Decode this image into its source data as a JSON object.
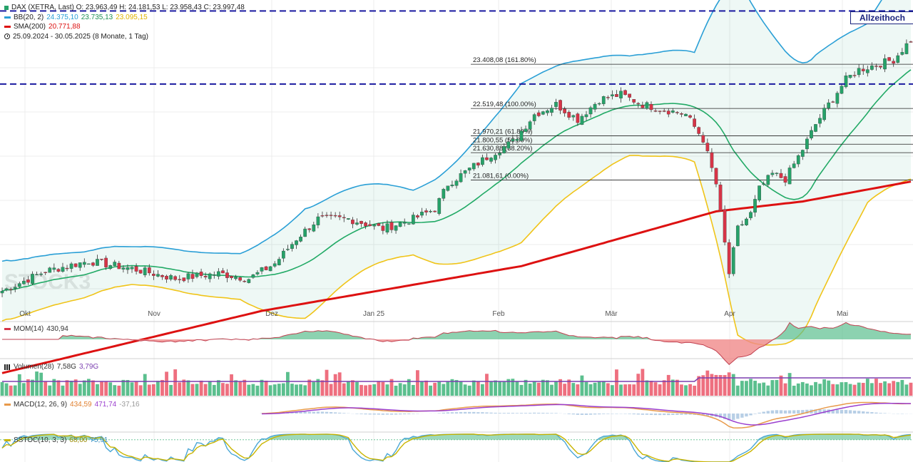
{
  "legend": {
    "dax": "DAX (XETRA, Last)  O: 23.963,49  H: 24.181,53  L: 23.958,43  C: 23.997,48",
    "bb_label": "BB(20, 2)",
    "bb_upper": "24.375,10",
    "bb_mid": "23.735,13",
    "bb_lower": "23.095,15",
    "sma_label": "SMA(200)",
    "sma_value": "20.771,88",
    "range": "25.09.2024 - 30.05.2025  (8 Monate, 1 Tag)"
  },
  "allzeit_button": "Allzeithoch",
  "watermark": "STOCK3",
  "indicators": {
    "mom": {
      "label": "MOM(14)",
      "value": "430,94"
    },
    "vol": {
      "label": "Volumen(28)",
      "value1": "7,58G",
      "value2": "3,79G"
    },
    "macd": {
      "label": "MACD(12, 26, 9)",
      "v1": "434,59",
      "v2": "471,74",
      "v3": "-37,16"
    },
    "sstoc": {
      "label": "SSTOC(10, 3, 3)",
      "v1": "68,00",
      "v2": "75,91"
    }
  },
  "colors": {
    "up": "#26a269",
    "down": "#d63447",
    "bb_upper": "#2a9fd6",
    "bb_mid": "#22aa66",
    "bb_lower": "#f0c419",
    "sma": "#dd1111",
    "allzeit_line": "#1a1aa0",
    "mom_fill_up": "#5bbf8e",
    "mom_fill_down": "#f08a8a",
    "macd_line": "#9b3fcf",
    "macd_signal": "#e89a4a",
    "stoc_k": "#4aa7d6",
    "stoc_d": "#c9b400"
  },
  "chart_data": {
    "type": "line",
    "x_ticks": [
      "Okt",
      "Nov",
      "Dez",
      "Jan 25",
      "Feb",
      "Mär",
      "Apr",
      "Mai"
    ],
    "y_range": [
      18250,
      24700
    ],
    "allzeit_levels": [
      24480,
      23010
    ],
    "fibonacci": [
      {
        "label": "23.408,08 (161.80%)",
        "value": 23408.08
      },
      {
        "label": "22.519,48 (100.00%)",
        "value": 22519.48
      },
      {
        "label": "21.970,21 (61.80%)",
        "value": 21970.21
      },
      {
        "label": "21.800,55 (50.00%)",
        "value": 21800.55
      },
      {
        "label": "21.630,88 (38.20%)",
        "value": 21630.88
      },
      {
        "label": "21.081,61 (0.00%)",
        "value": 21081.61
      }
    ],
    "close_anchors": [
      [
        0,
        18850
      ],
      [
        10,
        19250
      ],
      [
        20,
        19450
      ],
      [
        30,
        19300
      ],
      [
        40,
        19100
      ],
      [
        50,
        19200
      ],
      [
        57,
        19100
      ],
      [
        63,
        19400
      ],
      [
        68,
        19900
      ],
      [
        73,
        20300
      ],
      [
        80,
        20300
      ],
      [
        88,
        20100
      ],
      [
        95,
        20300
      ],
      [
        100,
        20500
      ],
      [
        103,
        21000
      ],
      [
        108,
        21300
      ],
      [
        113,
        21600
      ],
      [
        118,
        21850
      ],
      [
        123,
        22400
      ],
      [
        128,
        22600
      ],
      [
        133,
        22300
      ],
      [
        138,
        22700
      ],
      [
        143,
        22800
      ],
      [
        148,
        22600
      ],
      [
        153,
        22500
      ],
      [
        158,
        22400
      ],
      [
        162,
        21900
      ],
      [
        165,
        21000
      ],
      [
        168,
        19200
      ],
      [
        170,
        20100
      ],
      [
        173,
        20400
      ],
      [
        175,
        20900
      ],
      [
        178,
        21200
      ],
      [
        181,
        21100
      ],
      [
        185,
        21700
      ],
      [
        188,
        22200
      ],
      [
        191,
        22600
      ],
      [
        195,
        23100
      ],
      [
        198,
        23300
      ],
      [
        202,
        23400
      ],
      [
        206,
        23500
      ],
      [
        210,
        23900
      ]
    ],
    "sma200_anchors": [
      [
        0,
        17200
      ],
      [
        60,
        18450
      ],
      [
        120,
        19350
      ],
      [
        165,
        20450
      ],
      [
        185,
        20650
      ],
      [
        210,
        21050
      ]
    ],
    "bb_width_anchors": [
      [
        0,
        600
      ],
      [
        30,
        380
      ],
      [
        55,
        460
      ],
      [
        70,
        1100
      ],
      [
        95,
        650
      ],
      [
        120,
        1600
      ],
      [
        145,
        1000
      ],
      [
        160,
        1100
      ],
      [
        170,
        3600
      ],
      [
        185,
        2700
      ],
      [
        200,
        1800
      ],
      [
        210,
        2200
      ]
    ]
  }
}
